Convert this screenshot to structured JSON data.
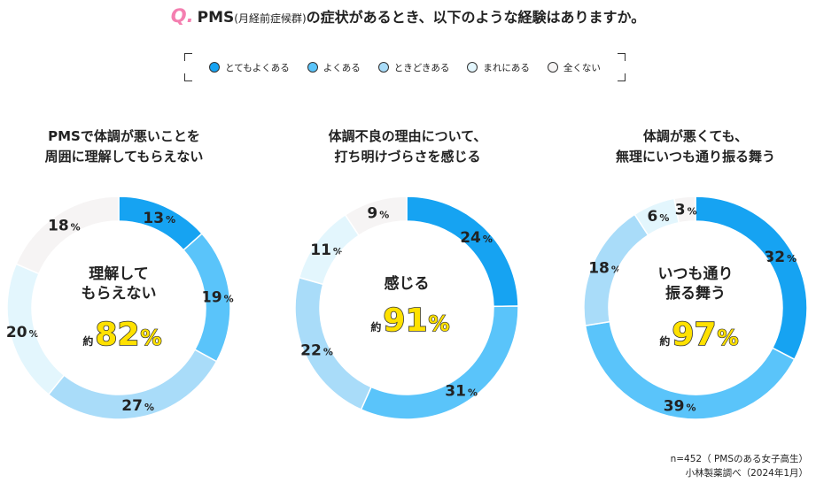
{
  "question": {
    "mark": "Q.",
    "pms": "PMS",
    "paren": "(月経前症候群)",
    "text": "の症状があるとき、以下のような経験はありますか。"
  },
  "legend": [
    {
      "label": "とてもよくある",
      "color": "#16a3f2"
    },
    {
      "label": "よくある",
      "color": "#5ac4fa"
    },
    {
      "label": "ときどきある",
      "color": "#a9dcf9"
    },
    {
      "label": "まれにある",
      "color": "#e3f6fd"
    },
    {
      "label": "全くない",
      "color": "#f6f4f4"
    }
  ],
  "chart_data": [
    {
      "type": "pie",
      "title_lines": [
        "PMSで体調が悪いことを",
        "周囲に理解してもらえない"
      ],
      "categories": [
        "とてもよくある",
        "よくある",
        "ときどきある",
        "まれにある",
        "全くない"
      ],
      "values": [
        13,
        19,
        27,
        20,
        18
      ],
      "center_lines": [
        "理解して",
        "もらえない"
      ],
      "approx_label": "約",
      "approx_value": "82",
      "approx_unit": "%"
    },
    {
      "type": "pie",
      "title_lines": [
        "体調不良の理由について、",
        "打ち明けづらさを感じる"
      ],
      "categories": [
        "とてもよくある",
        "よくある",
        "ときどきある",
        "まれにある",
        "全くない"
      ],
      "values": [
        24,
        31,
        22,
        11,
        9
      ],
      "center_lines": [
        "感じる"
      ],
      "approx_label": "約",
      "approx_value": "91",
      "approx_unit": "%"
    },
    {
      "type": "pie",
      "title_lines": [
        "体調が悪くても、",
        "無理にいつも通り振る舞う"
      ],
      "categories": [
        "とてもよくある",
        "よくある",
        "ときどきある",
        "まれにある",
        "全くない"
      ],
      "values": [
        32,
        39,
        18,
        6,
        3
      ],
      "center_lines": [
        "いつも通り",
        "振る舞う"
      ],
      "approx_label": "約",
      "approx_value": "97",
      "approx_unit": "%"
    }
  ],
  "unit": "%",
  "footnote": {
    "line1": "n=452（ PMSのある女子高生）",
    "line2": "小林製薬調べ（2024年1月）"
  }
}
